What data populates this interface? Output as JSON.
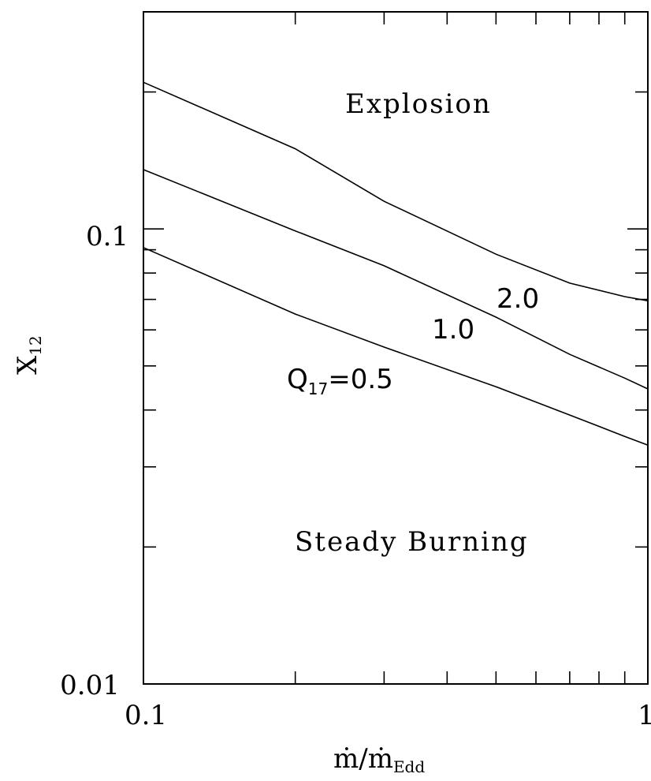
{
  "chart_data": {
    "type": "line",
    "xscale": "log",
    "yscale": "log",
    "xlim": [
      0.1,
      1
    ],
    "ylim": [
      0.01,
      0.3
    ],
    "x_tick_labels": [
      "0.1",
      "1"
    ],
    "y_tick_labels": [
      "0.01",
      "0.1"
    ],
    "xlabel": {
      "main": "ṁ/ṁ",
      "sub": "Edd"
    },
    "ylabel": {
      "main": "X",
      "sub": "12"
    },
    "annotations": {
      "explosion": "Explosion",
      "steady": "Steady Burning"
    },
    "series": [
      {
        "label": {
          "prefix": "Q",
          "sub": "17",
          "text": "=0.5"
        },
        "x": [
          0.1,
          0.2,
          0.3,
          0.5,
          0.7,
          0.9,
          1.0
        ],
        "y": [
          0.091,
          0.065,
          0.055,
          0.045,
          0.039,
          0.035,
          0.0335
        ]
      },
      {
        "label": {
          "prefix": "",
          "sub": "",
          "text": "1.0"
        },
        "x": [
          0.1,
          0.2,
          0.3,
          0.5,
          0.7,
          0.9,
          1.0
        ],
        "y": [
          0.135,
          0.099,
          0.083,
          0.064,
          0.053,
          0.047,
          0.0445
        ]
      },
      {
        "label": {
          "prefix": "",
          "sub": "",
          "text": "2.0"
        },
        "x": [
          0.1,
          0.2,
          0.3,
          0.5,
          0.7,
          0.9,
          1.0
        ],
        "y": [
          0.21,
          0.15,
          0.115,
          0.088,
          0.076,
          0.071,
          0.0695
        ]
      }
    ]
  }
}
